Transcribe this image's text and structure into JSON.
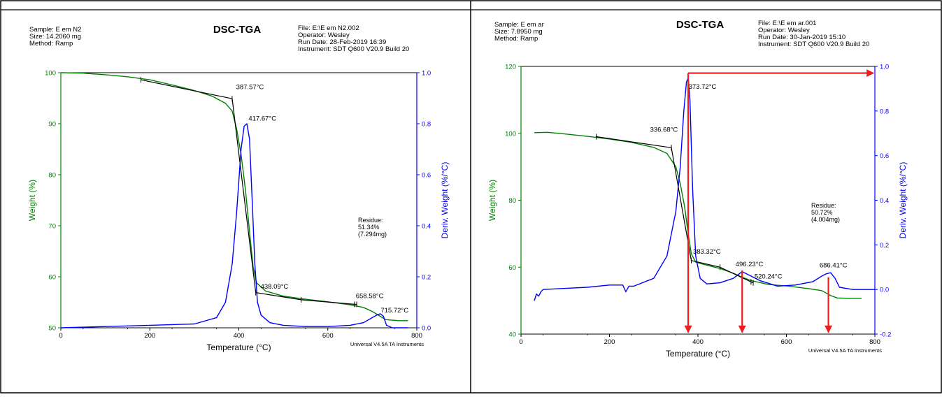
{
  "panels": [
    {
      "id": "left",
      "title": "DSC-TGA",
      "sample_info": [
        "Sample: E em N2",
        "Size:  14.2060 mg",
        "Method: Ramp"
      ],
      "file_info": [
        "File: E:\\E em N2.002",
        "Operator: Wesley",
        "Run Date: 28-Feb-2019 16:39",
        "Instrument: SDT Q600 V20.9 Build 20"
      ],
      "footer": "Universal V4.5A TA Instruments",
      "residue": [
        "Residue:",
        "51.34%",
        "(7.294mg)"
      ],
      "annotations": [
        {
          "text": "387.57°C",
          "t": 397,
          "w": 96.8,
          "axis": "left"
        },
        {
          "text": "417.67°C",
          "t": 425,
          "w": 90.6,
          "axis": "left"
        },
        {
          "text": "438.09°C",
          "t": 452,
          "w": 57.7,
          "axis": "left"
        },
        {
          "text": "658.58°C",
          "t": 666,
          "w": 55.8,
          "axis": "left"
        },
        {
          "text": "715.72°C",
          "t": 722,
          "w": 53.0,
          "axis": "left"
        }
      ]
    },
    {
      "id": "right",
      "title": "DSC-TGA",
      "sample_info": [
        "Sample: E em ar",
        "Size:  7.8950 mg",
        "Method: Ramp"
      ],
      "file_info": [
        "File: E:\\E em ar.001",
        "Operator: Wesley",
        "Run Date: 30-Jan-2019 15:10",
        "Instrument: SDT Q600 V20.9 Build 20"
      ],
      "footer": "Universal V4.5A TA Instruments",
      "residue": [
        "Residue:",
        "50.72%",
        "(4.004mg)"
      ],
      "annotations": [
        {
          "text": "373.72°C",
          "t": 382,
          "w": 113.3,
          "axis": "left"
        },
        {
          "text": "336.68°C",
          "t": 295,
          "w": 100.5,
          "axis": "left"
        },
        {
          "text": "383.32°C",
          "t": 392,
          "w": 64.0,
          "axis": "left"
        },
        {
          "text": "496.23°C",
          "t": 488,
          "w": 60.3,
          "axis": "left"
        },
        {
          "text": "520.24°C",
          "t": 531,
          "w": 56.6,
          "axis": "left"
        },
        {
          "text": "686.41°C",
          "t": 678,
          "w": 60.0,
          "axis": "left"
        }
      ]
    }
  ],
  "chart_data": [
    {
      "type": "line",
      "title": "DSC-TGA",
      "xlabel": "Temperature (°C)",
      "ylabel": "Weight (%)",
      "y2label": "Deriv. Weight (%/°C)",
      "xlim": [
        0,
        800
      ],
      "ylim": [
        50,
        100
      ],
      "y2lim": [
        0.0,
        1.0
      ],
      "xticks": [
        0,
        200,
        400,
        600,
        800
      ],
      "yticks": [
        50,
        60,
        70,
        80,
        90,
        100
      ],
      "y2ticks": [
        "0.0",
        "0.2",
        "0.4",
        "0.6",
        "0.8",
        "1.0"
      ],
      "series": [
        {
          "axis": "left",
          "color": "#008000",
          "x": [
            0,
            50,
            100,
            150,
            200,
            250,
            300,
            340,
            370,
            385,
            395,
            405,
            415,
            425,
            432,
            440,
            460,
            500,
            550,
            600,
            650,
            680,
            700,
            715,
            730,
            760,
            780
          ],
          "y": [
            100,
            99.9,
            99.6,
            99.2,
            98.6,
            97.6,
            96.5,
            95.4,
            94.0,
            92.5,
            89.0,
            84.0,
            77.0,
            68.0,
            62.0,
            58.8,
            57.2,
            56.2,
            55.6,
            55.1,
            54.5,
            54.0,
            53.2,
            52.4,
            51.6,
            51.4,
            51.4
          ]
        },
        {
          "axis": "right",
          "color": "#0000ff",
          "x": [
            0,
            100,
            200,
            300,
            350,
            370,
            385,
            395,
            405,
            412,
            418,
            424,
            430,
            436,
            442,
            450,
            470,
            500,
            550,
            600,
            650,
            680,
            700,
            710,
            718,
            725,
            732,
            745,
            780
          ],
          "y": [
            0.0,
            0.005,
            0.01,
            0.015,
            0.04,
            0.1,
            0.25,
            0.45,
            0.7,
            0.79,
            0.8,
            0.74,
            0.5,
            0.25,
            0.1,
            0.05,
            0.02,
            0.01,
            0.005,
            0.005,
            0.01,
            0.02,
            0.04,
            0.05,
            0.055,
            0.045,
            0.01,
            0.0,
            0.0
          ]
        },
        {
          "axis": "left",
          "color": "#000000",
          "x": [
            180,
            385,
            438,
            540,
            660,
            665
          ],
          "y": [
            98.6,
            94.9,
            56.9,
            55.5,
            54.6,
            54.6
          ]
        }
      ]
    },
    {
      "type": "line",
      "title": "DSC-TGA",
      "xlabel": "Temperature (°C)",
      "ylabel": "Weight (%)",
      "y2label": "Deriv. Weight (%/°C)",
      "xlim": [
        0,
        800
      ],
      "ylim": [
        40,
        120
      ],
      "y2lim": [
        -0.2,
        1.0
      ],
      "xticks": [
        0,
        200,
        400,
        600,
        800
      ],
      "yticks": [
        40,
        60,
        80,
        100,
        120
      ],
      "y2ticks": [
        "-0.2",
        "0.0",
        "0.2",
        "0.4",
        "0.6",
        "0.8",
        "1.0"
      ],
      "series": [
        {
          "axis": "left",
          "color": "#008000",
          "x": [
            30,
            60,
            100,
            150,
            200,
            250,
            300,
            330,
            350,
            360,
            370,
            378,
            385,
            395,
            420,
            450,
            480,
            500,
            520,
            560,
            600,
            650,
            680,
            700,
            715,
            740,
            770
          ],
          "y": [
            100.2,
            100.3,
            99.8,
            99.1,
            98.3,
            97.3,
            95.8,
            94.0,
            90.0,
            85.0,
            78.0,
            70.0,
            64.0,
            61.5,
            60.6,
            59.6,
            58.2,
            57.0,
            56.0,
            54.8,
            54.4,
            53.6,
            53.0,
            51.5,
            50.8,
            50.7,
            50.7
          ]
        },
        {
          "axis": "right",
          "color": "#0000ff",
          "x": [
            30,
            35,
            40,
            45,
            50,
            100,
            150,
            200,
            230,
            237,
            244,
            255,
            300,
            330,
            350,
            360,
            368,
            374,
            378,
            382,
            388,
            395,
            405,
            420,
            450,
            480,
            500,
            515,
            540,
            580,
            620,
            660,
            680,
            690,
            700,
            710,
            720,
            750,
            800
          ],
          "y": [
            -0.05,
            -0.02,
            -0.03,
            -0.01,
            0.0,
            0.005,
            0.01,
            0.02,
            0.02,
            -0.01,
            0.015,
            0.015,
            0.05,
            0.15,
            0.35,
            0.55,
            0.8,
            0.93,
            0.95,
            0.85,
            0.45,
            0.15,
            0.05,
            0.025,
            0.03,
            0.05,
            0.08,
            0.065,
            0.04,
            0.015,
            0.02,
            0.035,
            0.06,
            0.07,
            0.075,
            0.05,
            0.01,
            0.0,
            0.0
          ]
        },
        {
          "axis": "left",
          "color": "#000000",
          "x": [
            170,
            340,
            385,
            450,
            520,
            525
          ],
          "y": [
            99.0,
            95.7,
            62.0,
            60.0,
            55.6,
            55.3
          ]
        }
      ],
      "arrows": [
        {
          "from": [
            378,
            118
          ],
          "to": [
            797,
            118
          ],
          "axis": "left",
          "color": "#ee1c1c"
        },
        {
          "from": [
            378,
            118
          ],
          "to": [
            378,
            40.5
          ],
          "axis": "left",
          "color": "#ee1c1c"
        },
        {
          "from": [
            500,
            59.0
          ],
          "to": [
            500,
            40.5
          ],
          "axis": "left",
          "color": "#ee1c1c"
        },
        {
          "from": [
            695,
            57.0
          ],
          "to": [
            695,
            40.5
          ],
          "axis": "left",
          "color": "#ee1c1c"
        }
      ]
    }
  ]
}
